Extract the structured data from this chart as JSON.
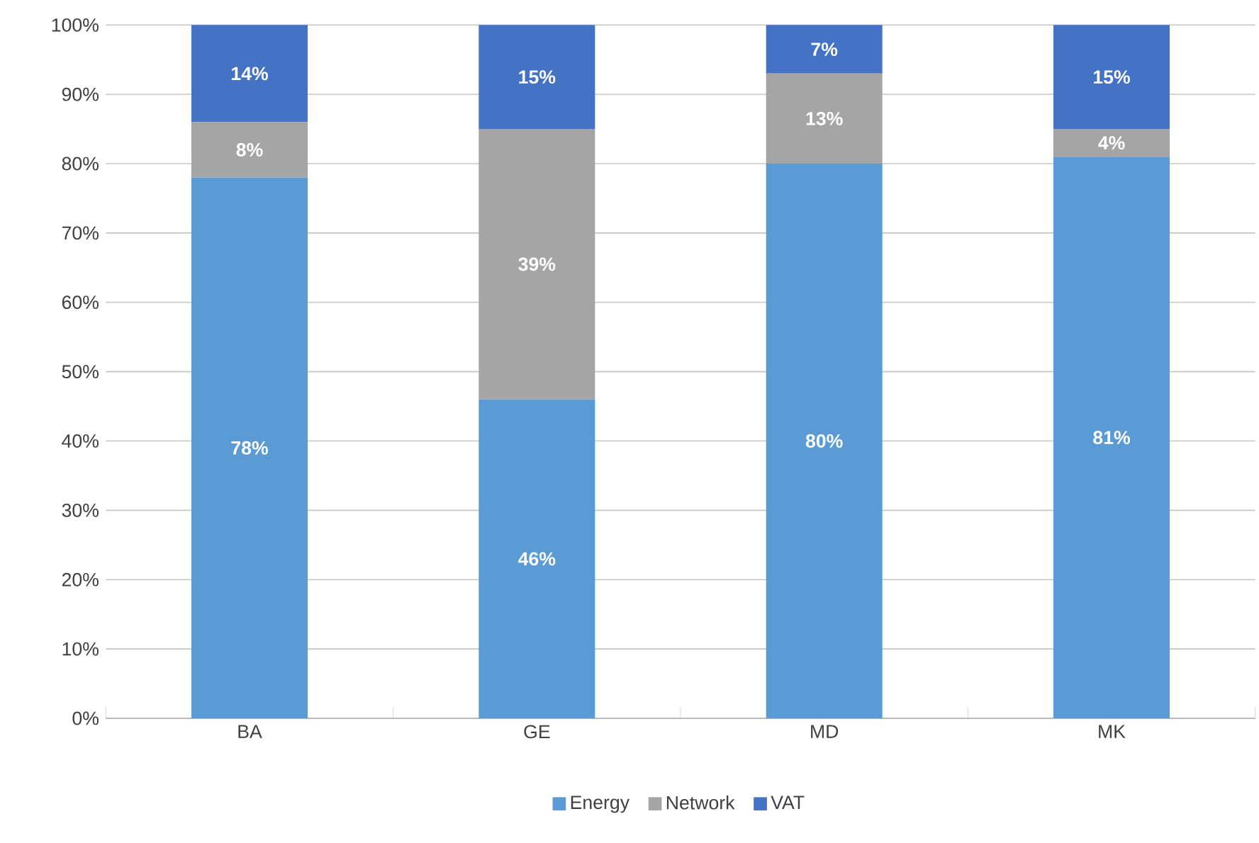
{
  "chart_data": {
    "type": "bar",
    "stacked": true,
    "categories": [
      "BA",
      "GE",
      "MD",
      "MK"
    ],
    "series": [
      {
        "name": "Energy",
        "color": "#5b9bd5",
        "values": [
          78,
          46,
          80,
          81
        ],
        "value_labels": [
          "78%",
          "46%",
          "80%",
          "81%"
        ]
      },
      {
        "name": "Network",
        "color": "#a5a5a5",
        "values": [
          8,
          39,
          13,
          4
        ],
        "value_labels": [
          "8%",
          "39%",
          "13%",
          "4%"
        ]
      },
      {
        "name": "VAT",
        "color": "#4472c4",
        "values": [
          14,
          15,
          7,
          15
        ],
        "value_labels": [
          "14%",
          "15%",
          "7%",
          "15%"
        ]
      }
    ],
    "ylim": [
      0,
      100
    ],
    "yticks": [
      {
        "value": 0,
        "label": "0%"
      },
      {
        "value": 10,
        "label": "10%"
      },
      {
        "value": 20,
        "label": "20%"
      },
      {
        "value": 30,
        "label": "30%"
      },
      {
        "value": 40,
        "label": "40%"
      },
      {
        "value": 50,
        "label": "50%"
      },
      {
        "value": 60,
        "label": "60%"
      },
      {
        "value": 70,
        "label": "70%"
      },
      {
        "value": 80,
        "label": "80%"
      },
      {
        "value": 90,
        "label": "90%"
      },
      {
        "value": 100,
        "label": "100%"
      }
    ],
    "grid": "y",
    "legend": "bottom"
  }
}
